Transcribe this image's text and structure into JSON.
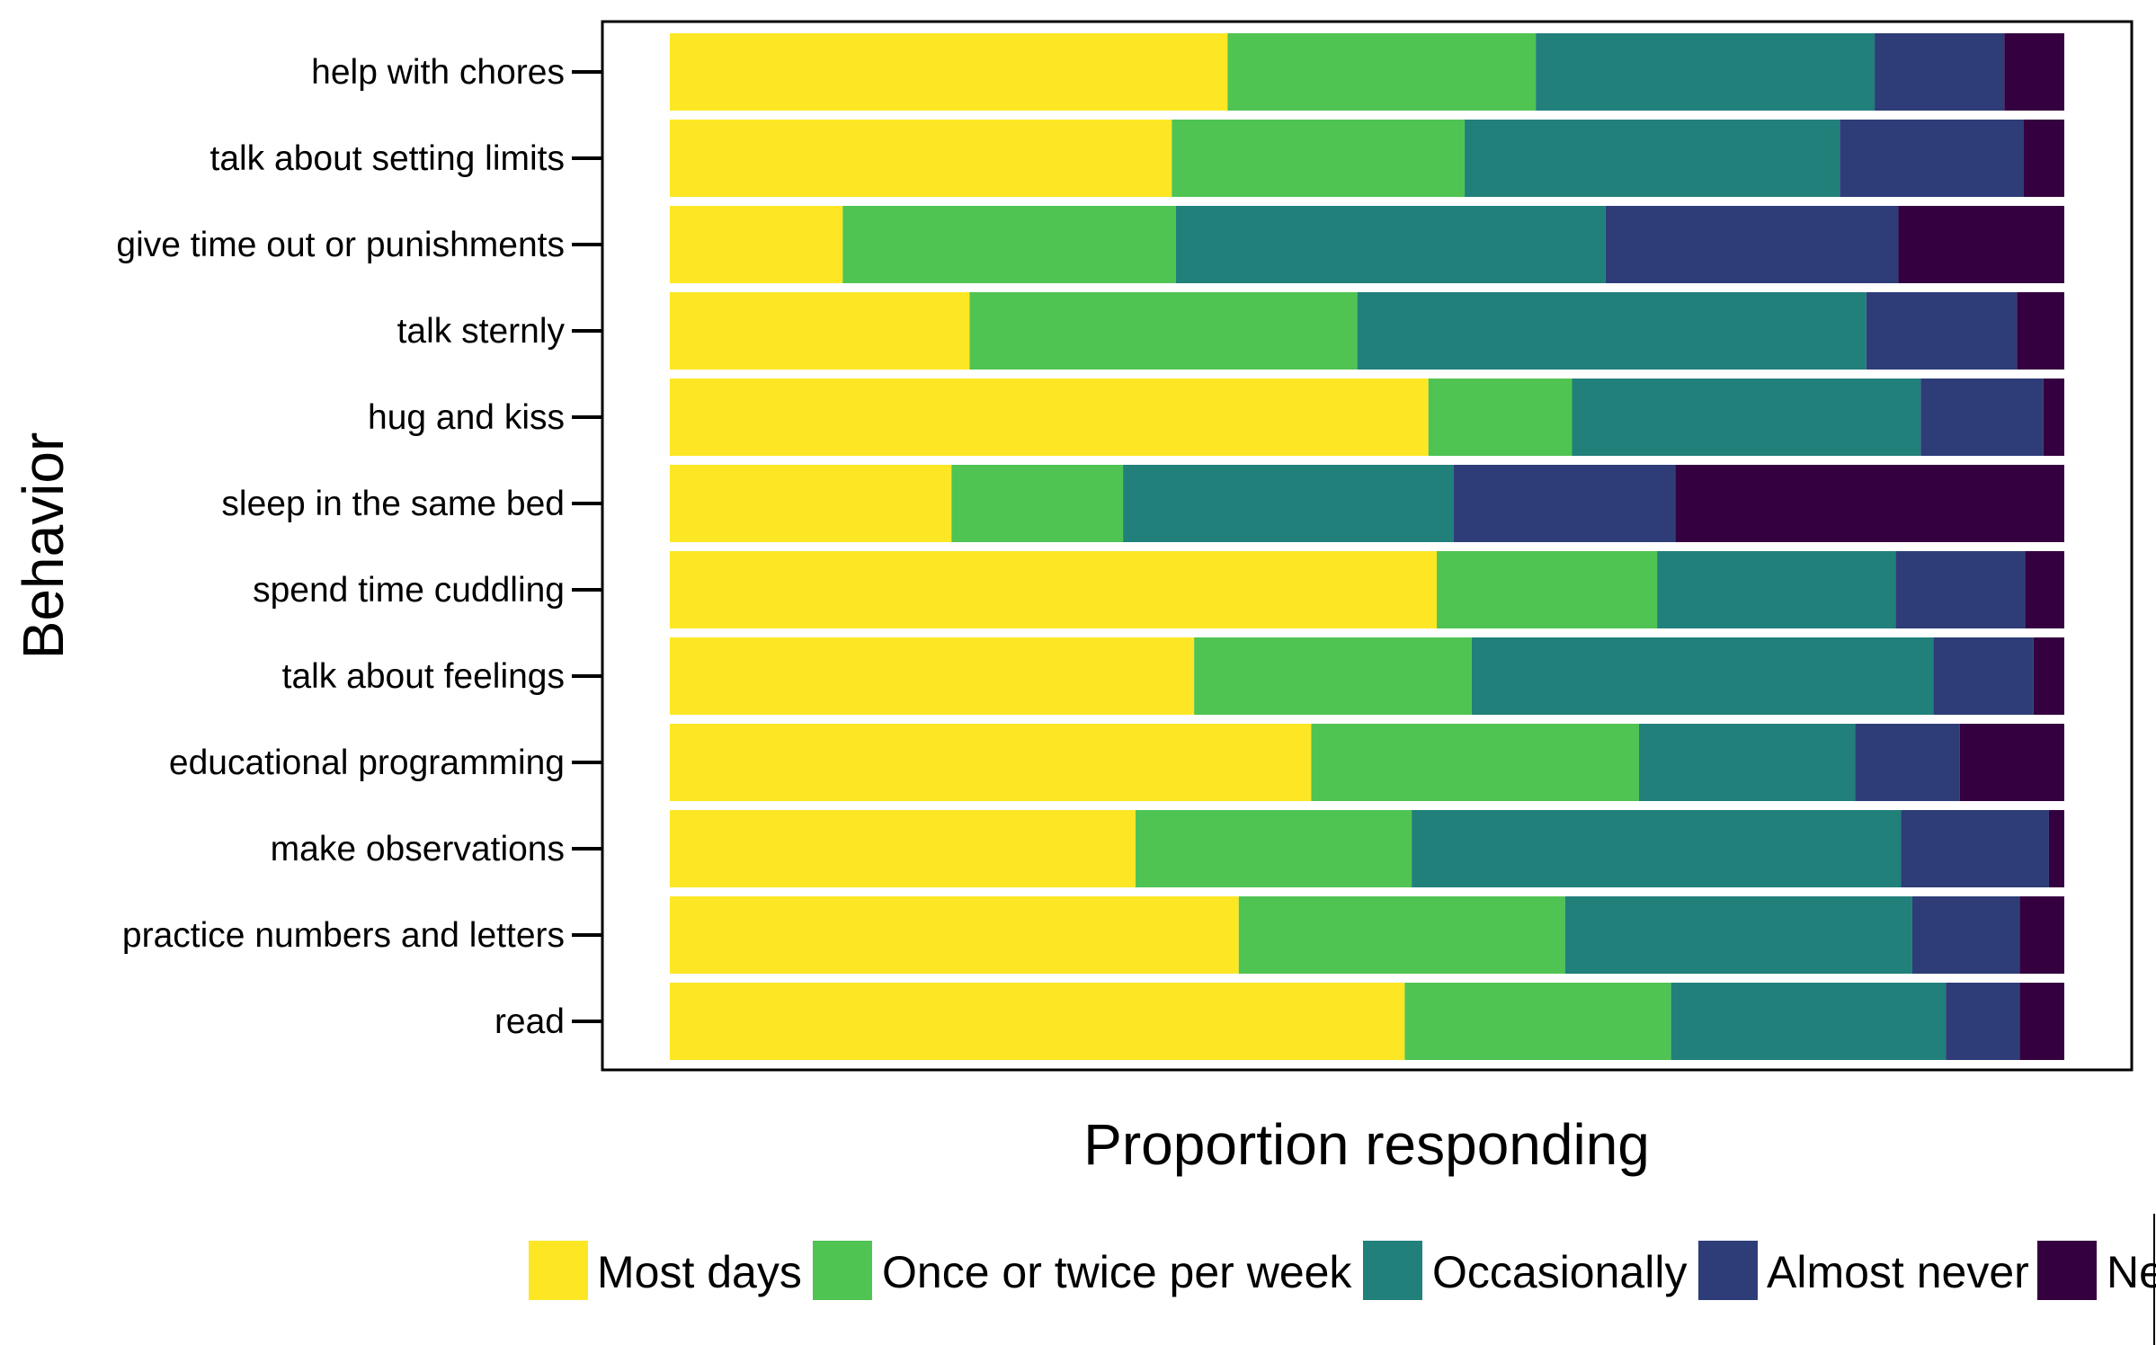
{
  "chart_data": {
    "type": "bar",
    "orientation": "horizontal",
    "stacked": true,
    "normalized": true,
    "title": "",
    "xlabel": "Proportion responding",
    "ylabel": "Behavior",
    "xlim": [
      0,
      1
    ],
    "x_ticks_shown": false,
    "grid": false,
    "legend_position": "bottom",
    "categories": [
      "help with chores",
      "talk about setting limits",
      "give time out or punishments",
      "talk sternly",
      "hug and kiss",
      "sleep in the same bed",
      "spend time cuddling",
      "talk about feelings",
      "educational programming",
      "make observations",
      "practice numbers and letters",
      "read"
    ],
    "series": [
      {
        "name": "Most days",
        "color": "#FDE725",
        "values": [
          0.4,
          0.36,
          0.124,
          0.215,
          0.544,
          0.202,
          0.55,
          0.376,
          0.46,
          0.334,
          0.408,
          0.527
        ]
      },
      {
        "name": "Once or twice per week",
        "color": "#4FC453",
        "values": [
          0.221,
          0.21,
          0.239,
          0.278,
          0.103,
          0.123,
          0.158,
          0.199,
          0.235,
          0.198,
          0.234,
          0.191
        ]
      },
      {
        "name": "Occasionally",
        "color": "#21807A",
        "values": [
          0.243,
          0.269,
          0.308,
          0.365,
          0.25,
          0.237,
          0.171,
          0.331,
          0.155,
          0.351,
          0.249,
          0.197
        ]
      },
      {
        "name": "Almost never",
        "color": "#2E3D78",
        "values": [
          0.093,
          0.132,
          0.21,
          0.108,
          0.088,
          0.159,
          0.093,
          0.072,
          0.075,
          0.106,
          0.077,
          0.053
        ]
      },
      {
        "name": "Never",
        "color": "#35003F",
        "values": [
          0.043,
          0.029,
          0.119,
          0.034,
          0.015,
          0.279,
          0.028,
          0.022,
          0.075,
          0.011,
          0.032,
          0.032
        ]
      }
    ],
    "legend_labels": [
      "Most days",
      "Once or twice per week",
      "Occasionally",
      "Almost never",
      "Ne"
    ]
  }
}
